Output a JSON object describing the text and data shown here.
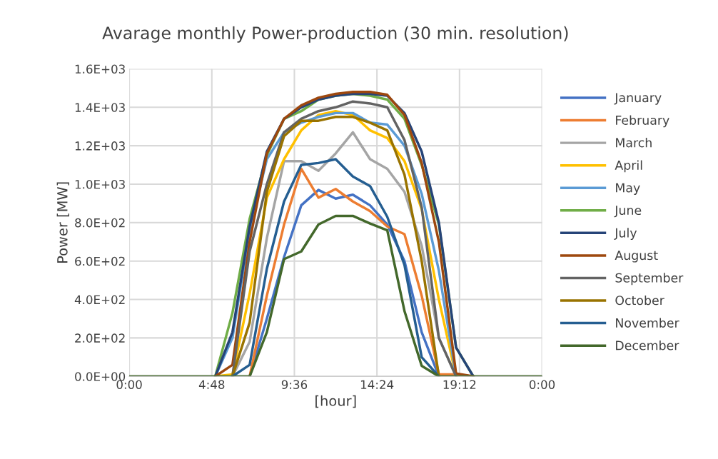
{
  "chart_data": {
    "type": "line",
    "title": "Avarage monthly Power-production (30 min. resolution)",
    "xlabel": "[hour]",
    "ylabel": "Power [MW]",
    "x": [
      0,
      1,
      2,
      3,
      4,
      5,
      6,
      7,
      8,
      9,
      10,
      11,
      12,
      13,
      14,
      15,
      16,
      17,
      18,
      19,
      20,
      21,
      22,
      23,
      24
    ],
    "xlim": [
      0,
      24
    ],
    "xticks": [
      {
        "value": 0,
        "label": "0:00"
      },
      {
        "value": 4.8,
        "label": "4:48"
      },
      {
        "value": 9.6,
        "label": "9:36"
      },
      {
        "value": 14.4,
        "label": "14:24"
      },
      {
        "value": 19.2,
        "label": "19:12"
      },
      {
        "value": 24,
        "label": "0:00"
      }
    ],
    "ylim": [
      0,
      1600
    ],
    "yticks": [
      {
        "value": 0,
        "label": "0.0E+00"
      },
      {
        "value": 200,
        "label": "2.0E+02"
      },
      {
        "value": 400,
        "label": "4.0E+02"
      },
      {
        "value": 600,
        "label": "6.0E+02"
      },
      {
        "value": 800,
        "label": "8.0E+02"
      },
      {
        "value": 1000,
        "label": "1.0E+03"
      },
      {
        "value": 1200,
        "label": "1.2E+03"
      },
      {
        "value": 1400,
        "label": "1.4E+03"
      },
      {
        "value": 1600,
        "label": "1.6E+03"
      }
    ],
    "grid": true,
    "legend": "right",
    "marker": "none",
    "line_style": "solid",
    "series": [
      {
        "name": "January",
        "color": "#4472c4",
        "values": [
          null,
          null,
          null,
          null,
          null,
          null,
          null,
          0,
          300,
          620,
          890,
          970,
          925,
          945,
          890,
          790,
          600,
          230,
          0,
          null,
          null,
          null,
          null,
          null,
          null
        ]
      },
      {
        "name": "February",
        "color": "#ed7d31",
        "values": [
          null,
          null,
          null,
          null,
          null,
          null,
          null,
          0,
          420,
          790,
          1080,
          930,
          975,
          910,
          860,
          780,
          740,
          420,
          10,
          10,
          0,
          null,
          null,
          null,
          null
        ]
      },
      {
        "name": "March",
        "color": "#a5a5a5",
        "values": [
          null,
          null,
          null,
          null,
          null,
          null,
          0,
          180,
          720,
          1120,
          1120,
          1070,
          1160,
          1270,
          1130,
          1080,
          960,
          680,
          200,
          0,
          null,
          null,
          null,
          null,
          null
        ]
      },
      {
        "name": "April",
        "color": "#ffc000",
        "values": [
          null,
          null,
          null,
          null,
          null,
          0,
          10,
          430,
          930,
          1130,
          1280,
          1360,
          1380,
          1360,
          1280,
          1240,
          1120,
          870,
          400,
          0,
          null,
          null,
          null,
          null,
          null
        ]
      },
      {
        "name": "May",
        "color": "#5b9bd5",
        "values": [
          null,
          null,
          null,
          null,
          null,
          0,
          200,
          760,
          1130,
          1270,
          1320,
          1350,
          1370,
          1370,
          1320,
          1310,
          1200,
          950,
          550,
          0,
          null,
          null,
          null,
          null,
          null
        ]
      },
      {
        "name": "June",
        "color": "#70ad47",
        "values": [
          null,
          null,
          null,
          null,
          null,
          0,
          330,
          820,
          1150,
          1340,
          1380,
          1440,
          1460,
          1470,
          1460,
          1440,
          1340,
          1100,
          790,
          150,
          0,
          null,
          null,
          null,
          null
        ]
      },
      {
        "name": "July",
        "color": "#264478",
        "values": [
          null,
          null,
          null,
          null,
          null,
          0,
          230,
          780,
          1170,
          1340,
          1400,
          1440,
          1460,
          1470,
          1470,
          1460,
          1370,
          1170,
          800,
          150,
          0,
          null,
          null,
          null,
          null
        ]
      },
      {
        "name": "August",
        "color": "#9e480e",
        "values": [
          null,
          null,
          null,
          null,
          null,
          0,
          60,
          700,
          1160,
          1340,
          1410,
          1450,
          1470,
          1480,
          1480,
          1465,
          1360,
          1110,
          700,
          15,
          0,
          null,
          null,
          null,
          null
        ]
      },
      {
        "name": "September",
        "color": "#636363",
        "values": [
          null,
          null,
          null,
          null,
          null,
          null,
          0,
          650,
          1000,
          1270,
          1340,
          1380,
          1400,
          1430,
          1420,
          1400,
          1230,
          880,
          200,
          0,
          null,
          null,
          null,
          null,
          null
        ]
      },
      {
        "name": "October",
        "color": "#997300",
        "values": [
          null,
          null,
          null,
          null,
          null,
          null,
          0,
          280,
          960,
          1250,
          1330,
          1330,
          1350,
          1350,
          1320,
          1280,
          1050,
          600,
          0,
          null,
          null,
          null,
          null,
          null,
          null
        ]
      },
      {
        "name": "November",
        "color": "#255e91",
        "values": [
          null,
          null,
          null,
          null,
          null,
          null,
          0,
          60,
          560,
          910,
          1100,
          1110,
          1130,
          1040,
          990,
          830,
          580,
          100,
          0,
          null,
          null,
          null,
          null,
          null,
          null
        ]
      },
      {
        "name": "December",
        "color": "#43682b",
        "values": [
          0,
          0,
          0,
          0,
          0,
          0,
          0,
          0,
          230,
          610,
          650,
          790,
          835,
          835,
          795,
          760,
          340,
          55,
          0,
          0,
          0,
          0,
          0,
          0,
          0
        ]
      }
    ]
  }
}
